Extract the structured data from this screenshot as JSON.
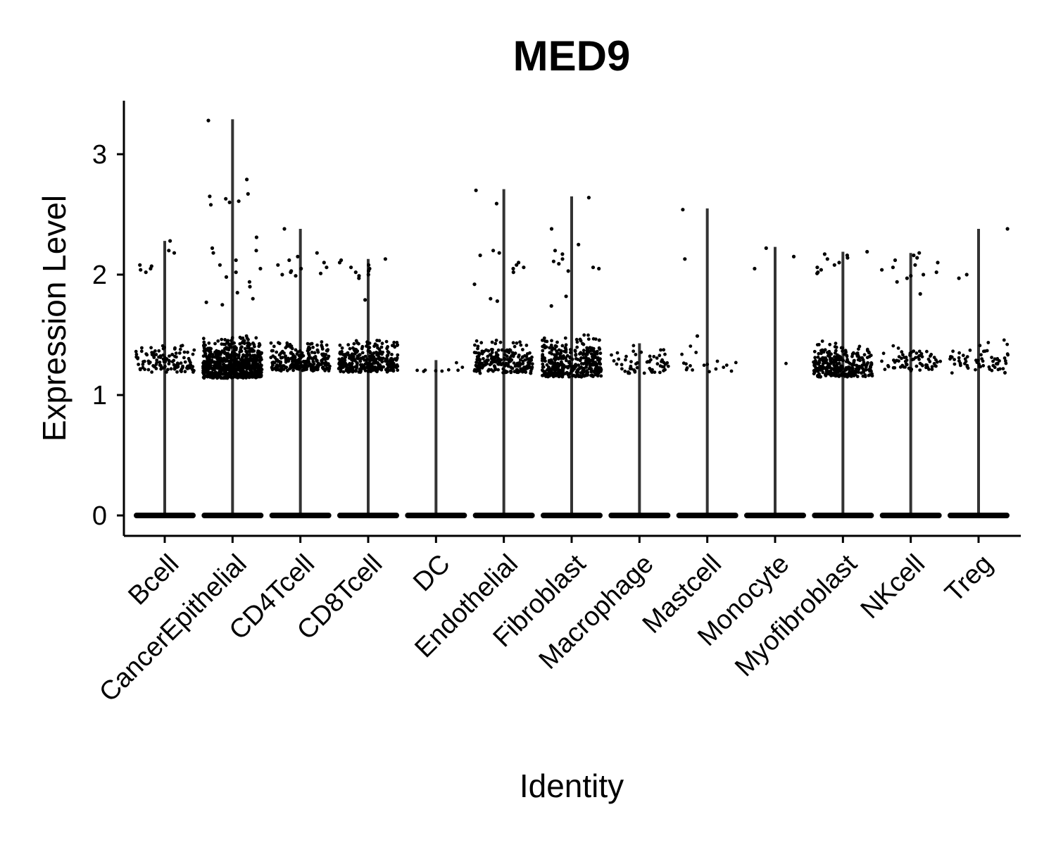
{
  "chart_data": {
    "type": "violin",
    "title": "MED9",
    "xlabel": "Identity",
    "ylabel": "Expression Level",
    "ylim": [
      -0.17,
      3.46
    ],
    "yticks": [
      0,
      1,
      2,
      3
    ],
    "grid": false,
    "legend": "none",
    "point_color": "#000000",
    "violin_color": "#333333",
    "categories": [
      "Bcell",
      "CancerEpithelial",
      "CD4Tcell",
      "CD8Tcell",
      "DC",
      "Endothelial",
      "Fibroblast",
      "Macrophage",
      "Mastcell",
      "Monocyte",
      "Myofibroblast",
      "NKcell",
      "Treg"
    ],
    "series": [
      {
        "category": "Bcell",
        "max": 2.28,
        "high_points": [
          2.28,
          2.2,
          2.18,
          2.08,
          2.07,
          2.05,
          2.04,
          2.02
        ],
        "upper_band": [
          1.19,
          1.45
        ],
        "upper_count": 120
      },
      {
        "category": "CancerEpithelial",
        "max": 3.29,
        "high_points": [
          3.28,
          2.79,
          2.67,
          2.65,
          2.63,
          2.61,
          2.6,
          2.58,
          2.31,
          2.22,
          2.2,
          2.18,
          2.12,
          2.08,
          2.05,
          2.02,
          1.98,
          1.94,
          1.9,
          1.85,
          1.8,
          1.77,
          1.75
        ],
        "upper_band": [
          1.14,
          1.5
        ],
        "upper_count": 700
      },
      {
        "category": "CD4Tcell",
        "max": 2.38,
        "high_points": [
          2.38,
          2.18,
          2.15,
          2.12,
          2.1,
          2.08,
          2.06,
          2.05,
          2.03,
          2.02,
          2.01,
          2.0,
          1.99
        ],
        "upper_band": [
          1.2,
          1.46
        ],
        "upper_count": 260
      },
      {
        "category": "CD8Tcell",
        "max": 2.13,
        "high_points": [
          2.13,
          2.12,
          2.1,
          2.08,
          2.06,
          2.05,
          2.03,
          2.02,
          2.0,
          1.99,
          1.97,
          1.79
        ],
        "upper_band": [
          1.19,
          1.47
        ],
        "upper_count": 330
      },
      {
        "category": "DC",
        "max": 1.29,
        "high_points": [],
        "upper_band": [
          1.19,
          1.3
        ],
        "upper_count": 9
      },
      {
        "category": "Endothelial",
        "max": 2.71,
        "high_points": [
          2.7,
          2.59,
          2.2,
          2.18,
          2.16,
          2.1,
          2.08,
          2.06,
          2.05,
          2.02,
          1.92,
          1.8,
          1.78
        ],
        "upper_band": [
          1.18,
          1.48
        ],
        "upper_count": 210
      },
      {
        "category": "Fibroblast",
        "max": 2.65,
        "high_points": [
          2.64,
          2.38,
          2.25,
          2.2,
          2.17,
          2.13,
          2.11,
          2.09,
          2.06,
          2.05,
          2.03,
          1.82,
          1.74
        ],
        "upper_band": [
          1.15,
          1.53
        ],
        "upper_count": 360
      },
      {
        "category": "Macrophage",
        "max": 1.43,
        "high_points": [],
        "upper_band": [
          1.18,
          1.45
        ],
        "upper_count": 60
      },
      {
        "category": "Mastcell",
        "max": 2.55,
        "high_points": [
          2.54,
          2.13,
          1.49
        ],
        "upper_band": [
          1.18,
          1.42
        ],
        "upper_count": 18
      },
      {
        "category": "Monocyte",
        "max": 2.23,
        "high_points": [
          2.22,
          2.15,
          2.05
        ],
        "upper_band": [
          1.26,
          1.27
        ],
        "upper_count": 1
      },
      {
        "category": "Myofibroblast",
        "max": 2.19,
        "high_points": [
          2.19,
          2.17,
          2.16,
          2.14,
          2.13,
          2.1,
          2.08,
          2.06,
          2.04,
          2.02,
          2.01
        ],
        "upper_band": [
          1.15,
          1.46
        ],
        "upper_count": 300
      },
      {
        "category": "NKcell",
        "max": 2.18,
        "high_points": [
          2.18,
          2.16,
          2.14,
          2.12,
          2.1,
          2.08,
          2.06,
          2.04,
          2.02,
          2.0,
          1.99,
          1.97,
          1.94,
          1.84
        ],
        "upper_band": [
          1.2,
          1.46
        ],
        "upper_count": 70
      },
      {
        "category": "Treg",
        "max": 2.38,
        "high_points": [
          2.38,
          2.0,
          1.97
        ],
        "upper_band": [
          1.18,
          1.46
        ],
        "upper_count": 65
      }
    ]
  }
}
